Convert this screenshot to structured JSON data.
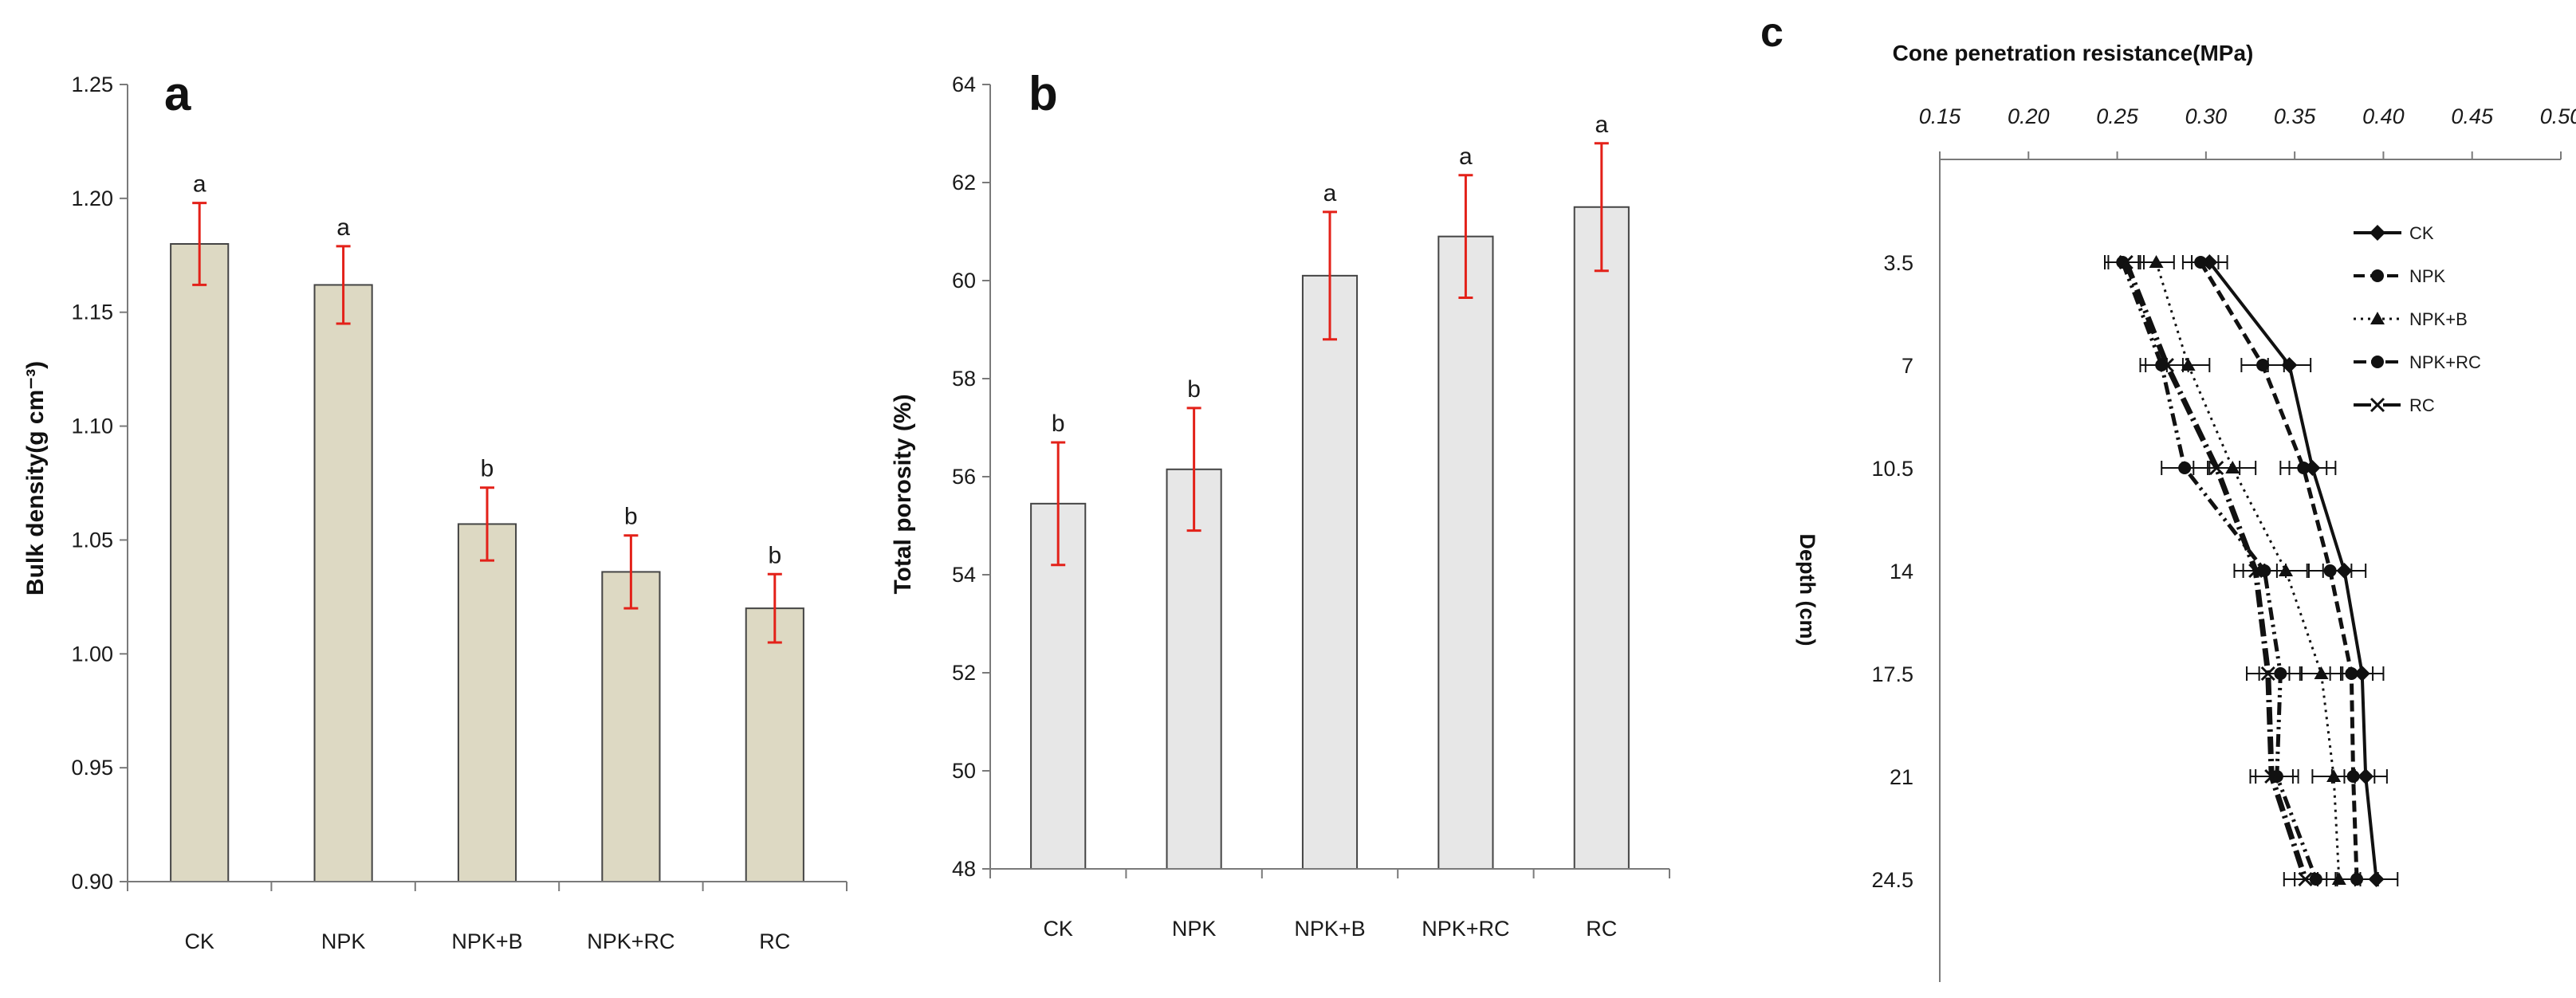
{
  "chart_data": [
    {
      "type": "bar",
      "panel_label": "a",
      "title": "",
      "xlabel": "",
      "ylabel": "Bulk density(g cm⁻³)",
      "ylim": [
        0.9,
        1.25
      ],
      "yticks": [
        "0.90",
        "0.95",
        "1.00",
        "1.05",
        "1.10",
        "1.15",
        "1.20",
        "1.25"
      ],
      "categories": [
        "CK",
        "NPK",
        "NPK+B",
        "NPK+RC",
        "RC"
      ],
      "values": [
        1.18,
        1.162,
        1.057,
        1.036,
        1.02
      ],
      "errors": [
        0.018,
        0.017,
        0.016,
        0.016,
        0.015
      ],
      "significance": [
        "a",
        "a",
        "b",
        "b",
        "b"
      ],
      "bar_color": "#ddd9c3",
      "error_color": "#e32119"
    },
    {
      "type": "bar",
      "panel_label": "b",
      "title": "",
      "xlabel": "",
      "ylabel": "Total porosity (%)",
      "ylim": [
        48,
        64
      ],
      "yticks": [
        "48",
        "50",
        "52",
        "54",
        "56",
        "58",
        "60",
        "62",
        "64"
      ],
      "categories": [
        "CK",
        "NPK",
        "NPK+B",
        "NPK+RC",
        "RC"
      ],
      "values": [
        55.45,
        56.15,
        60.1,
        60.9,
        61.5
      ],
      "errors": [
        1.25,
        1.25,
        1.3,
        1.25,
        1.3
      ],
      "significance": [
        "b",
        "b",
        "a",
        "a",
        "a"
      ],
      "bar_color": "#e7e7e7",
      "error_color": "#e32119"
    },
    {
      "type": "line",
      "panel_label": "c",
      "title": "",
      "xlabel": "Cone penetration resistance(MPa)",
      "ylabel": "Depth (cm)",
      "xlim": [
        0.15,
        0.5
      ],
      "xticks": [
        "0.15",
        "0.20",
        "0.25",
        "0.30",
        "0.35",
        "0.40",
        "0.45",
        "0.50"
      ],
      "ylim": [
        0,
        28
      ],
      "depths": [
        "3.5",
        "7",
        "10.5",
        "14",
        "17.5",
        "21",
        "24.5"
      ],
      "legend_position": "top-right",
      "series": [
        {
          "name": "CK",
          "values": [
            0.302,
            0.347,
            0.36,
            0.378,
            0.388,
            0.39,
            0.396
          ],
          "errors": [
            0.01,
            0.012,
            0.013,
            0.012,
            0.012,
            0.012,
            0.012
          ],
          "marker": "diamond"
        },
        {
          "name": "NPK",
          "values": [
            0.297,
            0.332,
            0.355,
            0.37,
            0.382,
            0.383,
            0.385
          ],
          "errors": [
            0.01,
            0.012,
            0.013,
            0.012,
            0.012,
            0.012,
            0.012
          ],
          "marker": "circle"
        },
        {
          "name": "NPK+B",
          "values": [
            0.272,
            0.29,
            0.315,
            0.345,
            0.365,
            0.372,
            0.375
          ],
          "errors": [
            0.01,
            0.012,
            0.013,
            0.012,
            0.012,
            0.012,
            0.012
          ],
          "marker": "triangle"
        },
        {
          "name": "NPK+RC",
          "values": [
            0.253,
            0.275,
            0.288,
            0.333,
            0.342,
            0.34,
            0.362
          ],
          "errors": [
            0.01,
            0.012,
            0.013,
            0.012,
            0.012,
            0.012,
            0.012
          ],
          "marker": "circle"
        },
        {
          "name": "RC",
          "values": [
            0.255,
            0.278,
            0.306,
            0.328,
            0.335,
            0.337,
            0.356
          ],
          "errors": [
            0.01,
            0.012,
            0.013,
            0.012,
            0.012,
            0.012,
            0.012
          ],
          "marker": "x"
        }
      ]
    }
  ]
}
